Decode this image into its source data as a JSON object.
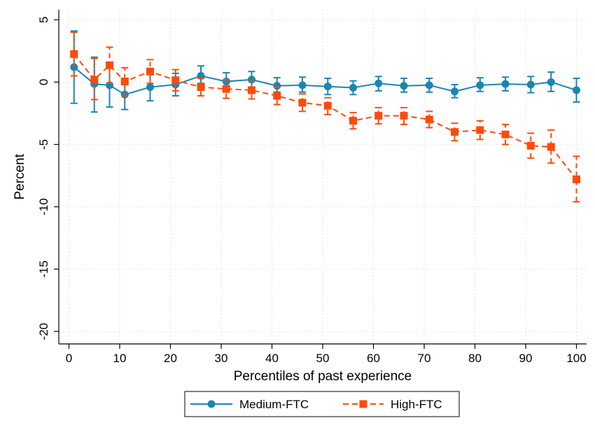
{
  "chart_data": {
    "type": "line",
    "title": "",
    "xlabel": "Percentiles of past experience",
    "ylabel": "Percent",
    "xlim": [
      -2,
      102
    ],
    "ylim": [
      -21,
      5.8
    ],
    "x_ticks": [
      0,
      10,
      20,
      30,
      40,
      50,
      60,
      70,
      80,
      90,
      100
    ],
    "y_ticks": [
      5,
      0,
      -5,
      -10,
      -15,
      -20
    ],
    "grid": "horizontal and vertical dotted",
    "legend": {
      "position": "bottom-center"
    },
    "series": [
      {
        "name": "Medium-FTC",
        "color": "#1a86b0",
        "marker": "circle",
        "line_style": "solid",
        "x": [
          1,
          5,
          8,
          11,
          16,
          21,
          26,
          31,
          36,
          41,
          46,
          51,
          56,
          61,
          66,
          71,
          76,
          81,
          86,
          91,
          95,
          100
        ],
        "y": [
          1.2,
          -0.15,
          -0.25,
          -1.0,
          -0.4,
          -0.2,
          0.5,
          0.05,
          0.2,
          -0.3,
          -0.25,
          -0.35,
          -0.45,
          -0.1,
          -0.3,
          -0.25,
          -0.75,
          -0.25,
          -0.15,
          -0.2,
          0.0,
          -0.65
        ],
        "ci_low": [
          -1.7,
          -2.4,
          -2.0,
          -2.2,
          -1.5,
          -1.1,
          -0.1,
          -0.6,
          -0.4,
          -0.8,
          -0.8,
          -1.0,
          -1.0,
          -0.7,
          -0.8,
          -0.8,
          -1.25,
          -0.75,
          -0.7,
          -0.85,
          -0.75,
          -1.6
        ],
        "ci_high": [
          4.1,
          2.0,
          1.5,
          0.2,
          0.7,
          0.7,
          1.3,
          0.75,
          0.85,
          0.35,
          0.4,
          0.3,
          0.1,
          0.45,
          0.3,
          0.3,
          -0.2,
          0.35,
          0.4,
          0.45,
          0.8,
          0.3
        ]
      },
      {
        "name": "High-FTC",
        "color": "#ff4a0a",
        "marker": "square",
        "line_style": "dashed",
        "x": [
          1,
          5,
          8,
          11,
          16,
          21,
          26,
          31,
          36,
          41,
          46,
          51,
          56,
          61,
          66,
          71,
          76,
          81,
          86,
          91,
          95,
          100
        ],
        "y": [
          2.25,
          0.2,
          1.35,
          0.05,
          0.85,
          0.15,
          -0.4,
          -0.55,
          -0.65,
          -1.1,
          -1.65,
          -1.9,
          -3.1,
          -2.7,
          -2.7,
          -3.0,
          -4.0,
          -3.85,
          -4.2,
          -5.1,
          -5.2,
          -7.8
        ],
        "ci_low": [
          0.5,
          -1.4,
          -0.1,
          -1.1,
          -0.1,
          -0.7,
          -1.1,
          -1.3,
          -1.35,
          -1.8,
          -2.35,
          -2.6,
          -3.75,
          -3.35,
          -3.4,
          -3.65,
          -4.7,
          -4.6,
          -5.0,
          -6.1,
          -6.5,
          -9.6
        ],
        "ci_high": [
          4.0,
          1.9,
          2.8,
          1.15,
          1.8,
          1.0,
          0.3,
          0.2,
          0.05,
          -0.4,
          -0.95,
          -1.25,
          -2.45,
          -2.05,
          -2.05,
          -2.35,
          -3.3,
          -3.1,
          -3.4,
          -4.1,
          -3.85,
          -5.95
        ]
      }
    ]
  }
}
